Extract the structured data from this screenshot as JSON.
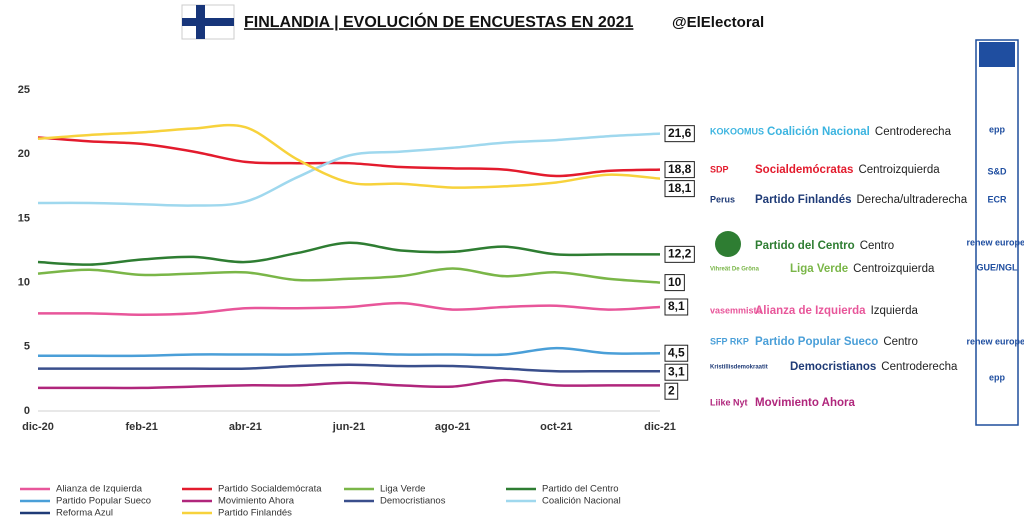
{
  "header": {
    "title": "FINLANDIA | EVOLUCIÓN DE ENCUESTAS EN 2021",
    "handle": "@ElElectoral"
  },
  "chart_data": {
    "type": "line",
    "categories": [
      "dic-20",
      null,
      "feb-21",
      null,
      "abr-21",
      null,
      "jun-21",
      null,
      "ago-21",
      null,
      "oct-21",
      null,
      "dic-21"
    ],
    "ylim": [
      0,
      25
    ],
    "yticks": [
      0,
      5,
      10,
      15,
      20,
      25
    ],
    "series": [
      {
        "name": "Alianza de Izquierda",
        "color": "#e8569a",
        "values": [
          7.6,
          7.6,
          7.5,
          7.6,
          8.0,
          8.0,
          8.1,
          8.4,
          7.9,
          8.1,
          8.2,
          7.9,
          8.1
        ],
        "value_labels": [
          null,
          null,
          null,
          null,
          null,
          null,
          null,
          null,
          null,
          null,
          null,
          null,
          "8,1"
        ]
      },
      {
        "name": "Partido Socialdemócrata",
        "color": "#e31b2d",
        "values": [
          21.3,
          21.0,
          20.8,
          20.2,
          19.4,
          19.3,
          19.3,
          19.0,
          18.9,
          18.8,
          18.3,
          18.7,
          18.8
        ],
        "value_labels": [
          null,
          null,
          null,
          null,
          null,
          null,
          null,
          null,
          null,
          null,
          null,
          null,
          "18,8"
        ]
      },
      {
        "name": "Liga Verde",
        "color": "#7ab648",
        "values": [
          10.7,
          11.0,
          10.6,
          10.7,
          10.8,
          10.2,
          10.3,
          10.5,
          11.1,
          10.5,
          10.8,
          10.3,
          10.0
        ],
        "value_labels": [
          null,
          null,
          null,
          null,
          null,
          null,
          null,
          null,
          null,
          null,
          null,
          null,
          "10"
        ]
      },
      {
        "name": "Partido del Centro",
        "color": "#2e7d32",
        "values": [
          11.6,
          11.4,
          11.8,
          12.0,
          11.6,
          12.3,
          13.1,
          12.5,
          12.4,
          12.8,
          12.2,
          12.2,
          12.2
        ],
        "value_labels": [
          null,
          null,
          null,
          null,
          null,
          null,
          null,
          null,
          null,
          null,
          null,
          null,
          "12,2"
        ]
      },
      {
        "name": "Partido Popular Sueco",
        "color": "#4a9fd8",
        "values": [
          4.3,
          4.3,
          4.3,
          4.4,
          4.4,
          4.4,
          4.5,
          4.4,
          4.4,
          4.4,
          4.9,
          4.5,
          4.5
        ],
        "value_labels": [
          null,
          null,
          null,
          null,
          null,
          null,
          null,
          null,
          null,
          null,
          null,
          null,
          "4,5"
        ]
      },
      {
        "name": "Movimiento Ahora",
        "color": "#b0267c",
        "values": [
          1.8,
          1.8,
          1.8,
          1.9,
          2.0,
          2.0,
          2.2,
          2.0,
          1.9,
          2.4,
          2.0,
          2.0,
          2.0
        ],
        "value_labels": [
          null,
          null,
          null,
          null,
          null,
          null,
          null,
          null,
          null,
          null,
          null,
          null,
          "2"
        ]
      },
      {
        "name": "Democristianos",
        "color": "#3a4f8c",
        "values": [
          3.3,
          3.3,
          3.3,
          3.3,
          3.3,
          3.5,
          3.6,
          3.5,
          3.5,
          3.3,
          3.1,
          3.1,
          3.1
        ],
        "value_labels": [
          null,
          null,
          null,
          null,
          null,
          null,
          null,
          null,
          null,
          null,
          null,
          null,
          "3,1"
        ]
      },
      {
        "name": "Coalición Nacional",
        "color": "#9fd8ee",
        "values": [
          16.2,
          16.2,
          16.1,
          16.0,
          16.3,
          18.2,
          19.9,
          20.2,
          20.5,
          20.9,
          21.1,
          21.4,
          21.6
        ],
        "value_labels": [
          null,
          null,
          null,
          null,
          null,
          null,
          null,
          null,
          null,
          null,
          null,
          null,
          "21,6"
        ]
      },
      {
        "name": "Reforma Azul",
        "color": "#1f3b77",
        "values": [
          null,
          null,
          null,
          null,
          null,
          null,
          null,
          null,
          null,
          null,
          null,
          null,
          null
        ]
      },
      {
        "name": "Partido Finlandés",
        "color": "#f7d23c",
        "values": [
          21.2,
          21.5,
          21.7,
          22.0,
          22.1,
          19.6,
          17.8,
          17.7,
          17.4,
          17.5,
          17.8,
          18.4,
          18.1
        ],
        "value_labels": [
          null,
          null,
          null,
          null,
          null,
          null,
          null,
          null,
          null,
          null,
          null,
          null,
          "18,1"
        ]
      }
    ]
  },
  "parties": [
    {
      "logo": "KOKOOMUS",
      "name": "Coalición Nacional",
      "ideology": "Centroderecha",
      "color": "#3bb4e0"
    },
    {
      "logo": "SDP",
      "name": "Socialdemócratas",
      "ideology": "Centroizquierda",
      "color": "#e31b2d"
    },
    {
      "logo": "Perus",
      "name": "Partido Finlandés",
      "ideology": "Derecha/ultraderecha",
      "color": "#1f3b77"
    },
    {
      "name": "Partido del Centro",
      "ideology": "Centro",
      "color": "#2e7d32"
    },
    {
      "logo": "Vihreät De Gröna",
      "name": "Liga Verde",
      "ideology": "Centroizquierda",
      "color": "#7ab648"
    },
    {
      "logo": "vasemmisto",
      "name": "Alianza de Izquierda",
      "ideology": "Izquierda",
      "color": "#e8569a"
    },
    {
      "logo": "SFP RKP",
      "name": "Partido Popular Sueco",
      "ideology": "Centro",
      "color": "#4a9fd8"
    },
    {
      "logo": "Kristillisdemokraatit",
      "name": "Democristianos",
      "ideology": "Centroderecha",
      "color": "#1f3b77"
    },
    {
      "logo": "Liike Nyt",
      "name": "Movimiento Ahora",
      "color": "#b0267c"
    }
  ],
  "eu_groups": [
    "epp",
    "S&D",
    "ECR",
    "renew europe.",
    "GUE/NGL",
    "renew europe.",
    "epp"
  ]
}
